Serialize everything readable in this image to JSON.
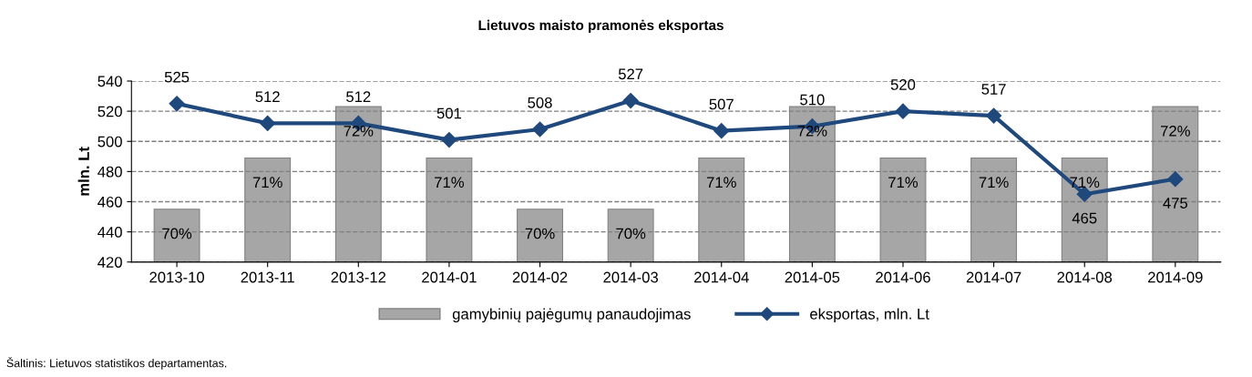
{
  "chart_data": {
    "type": "line",
    "title": "Lietuvos maisto pramonės eksportas",
    "ylabel": "mln. Lt",
    "categories": [
      "2013-10",
      "2013-11",
      "2013-12",
      "2014-01",
      "2014-02",
      "2014-03",
      "2014-04",
      "2014-05",
      "2014-06",
      "2014-07",
      "2014-08",
      "2014-09"
    ],
    "series": [
      {
        "name": "gamybinių pajėgumų panaudojimas",
        "type": "bar",
        "axis": "y2",
        "color": "#a6a6a6",
        "values": [
          70,
          71,
          72,
          71,
          70,
          70,
          71,
          72,
          71,
          71,
          71,
          72
        ],
        "value_labels": [
          "70%",
          "71%",
          "72%",
          "71%",
          "70%",
          "70%",
          "71%",
          "72%",
          "71%",
          "71%",
          "71%",
          "72%"
        ]
      },
      {
        "name": "eksportas, mln. Lt",
        "color": "#1f497d",
        "values": [
          525,
          512,
          512,
          501,
          508,
          527,
          507,
          510,
          520,
          517,
          465,
          475
        ],
        "value_labels": [
          "525",
          "512",
          "512",
          "501",
          "508",
          "527",
          "507",
          "510",
          "520",
          "517",
          "465",
          "475"
        ]
      }
    ],
    "ylim": [
      420,
      540
    ],
    "yticks": [
      420,
      440,
      460,
      480,
      500,
      520,
      540
    ],
    "y2lim": [
      68.97,
      72.5
    ],
    "grid": "y",
    "legend": "bottom",
    "marker": "diamond",
    "line_style": "solid",
    "annotations": [
      "Šaltinis: Lietuvos statistikos departamentas."
    ]
  }
}
